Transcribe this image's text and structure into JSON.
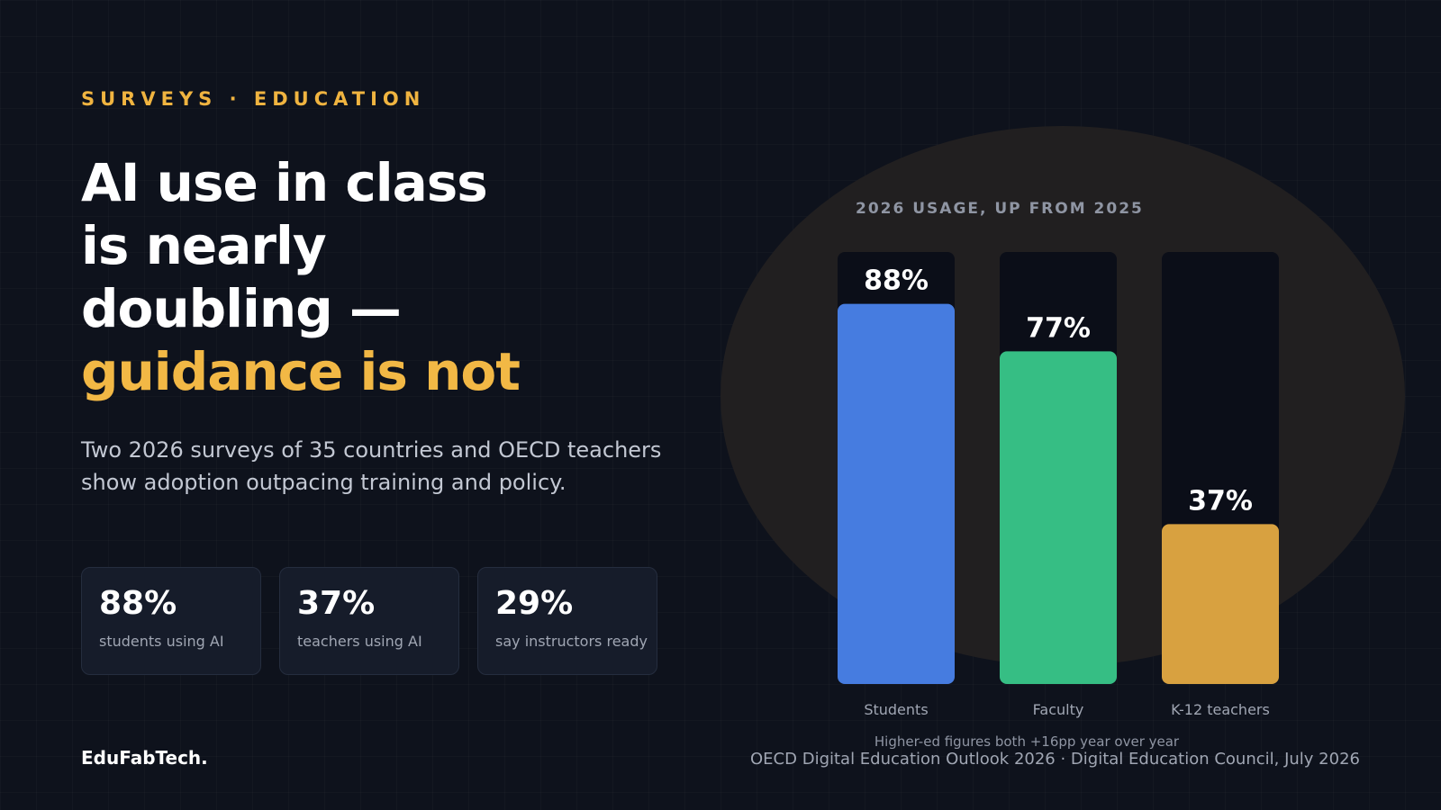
{
  "eyebrow": "SURVEYS · EDUCATION",
  "headline": {
    "line1": "AI use in class",
    "line2": "is nearly",
    "line3": "doubling —",
    "accent": "guidance is not"
  },
  "subtitle": "Two 2026 surveys of 35 countries and OECD teachers show adoption outpacing training and policy.",
  "stats": [
    {
      "value": "88%",
      "label": "students using AI"
    },
    {
      "value": "37%",
      "label": "teachers using AI"
    },
    {
      "value": "29%",
      "label": "say instructors ready"
    }
  ],
  "brand": "EduFabTech.",
  "source": "OECD Digital Education Outlook 2026 · Digital Education Council, July 2026",
  "colors": {
    "accent": "#f2b845",
    "students": "#467ce0",
    "faculty": "#36be84",
    "k12": "#d8a140",
    "track": "#0b0e18"
  },
  "chart_data": {
    "type": "bar",
    "title": "2026 USAGE, UP FROM 2025",
    "categories": [
      "Students",
      "Faculty",
      "K-12 teachers"
    ],
    "values": [
      88,
      77,
      37
    ],
    "value_labels": [
      "88%",
      "77%",
      "37%"
    ],
    "ylim": [
      0,
      100
    ],
    "unit": "%",
    "annotation": "Higher-ed figures both +16pp year over year"
  }
}
